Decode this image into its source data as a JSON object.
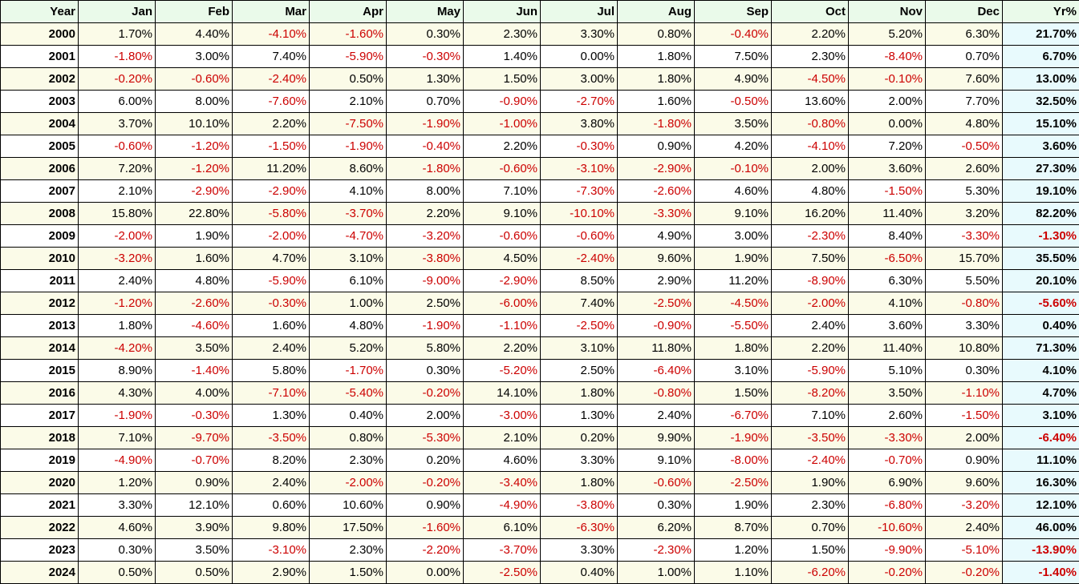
{
  "headers": [
    "Year",
    "Jan",
    "Feb",
    "Mar",
    "Apr",
    "May",
    "Jun",
    "Jul",
    "Aug",
    "Sep",
    "Oct",
    "Nov",
    "Dec",
    "Yr%"
  ],
  "rows": [
    [
      "2000",
      "1.70%",
      "4.40%",
      "-4.10%",
      "-1.60%",
      "0.30%",
      "2.30%",
      "3.30%",
      "0.80%",
      "-0.40%",
      "2.20%",
      "5.20%",
      "6.30%",
      "21.70%"
    ],
    [
      "2001",
      "-1.80%",
      "3.00%",
      "7.40%",
      "-5.90%",
      "-0.30%",
      "1.40%",
      "0.00%",
      "1.80%",
      "7.50%",
      "2.30%",
      "-8.40%",
      "0.70%",
      "6.70%"
    ],
    [
      "2002",
      "-0.20%",
      "-0.60%",
      "-2.40%",
      "0.50%",
      "1.30%",
      "1.50%",
      "3.00%",
      "1.80%",
      "4.90%",
      "-4.50%",
      "-0.10%",
      "7.60%",
      "13.00%"
    ],
    [
      "2003",
      "6.00%",
      "8.00%",
      "-7.60%",
      "2.10%",
      "0.70%",
      "-0.90%",
      "-2.70%",
      "1.60%",
      "-0.50%",
      "13.60%",
      "2.00%",
      "7.70%",
      "32.50%"
    ],
    [
      "2004",
      "3.70%",
      "10.10%",
      "2.20%",
      "-7.50%",
      "-1.90%",
      "-1.00%",
      "3.80%",
      "-1.80%",
      "3.50%",
      "-0.80%",
      "0.00%",
      "4.80%",
      "15.10%"
    ],
    [
      "2005",
      "-0.60%",
      "-1.20%",
      "-1.50%",
      "-1.90%",
      "-0.40%",
      "2.20%",
      "-0.30%",
      "0.90%",
      "4.20%",
      "-4.10%",
      "7.20%",
      "-0.50%",
      "3.60%"
    ],
    [
      "2006",
      "7.20%",
      "-1.20%",
      "11.20%",
      "8.60%",
      "-1.80%",
      "-0.60%",
      "-3.10%",
      "-2.90%",
      "-0.10%",
      "2.00%",
      "3.60%",
      "2.60%",
      "27.30%"
    ],
    [
      "2007",
      "2.10%",
      "-2.90%",
      "-2.90%",
      "4.10%",
      "8.00%",
      "7.10%",
      "-7.30%",
      "-2.60%",
      "4.60%",
      "4.80%",
      "-1.50%",
      "5.30%",
      "19.10%"
    ],
    [
      "2008",
      "15.80%",
      "22.80%",
      "-5.80%",
      "-3.70%",
      "2.20%",
      "9.10%",
      "-10.10%",
      "-3.30%",
      "9.10%",
      "16.20%",
      "11.40%",
      "3.20%",
      "82.20%"
    ],
    [
      "2009",
      "-2.00%",
      "1.90%",
      "-2.00%",
      "-4.70%",
      "-3.20%",
      "-0.60%",
      "-0.60%",
      "4.90%",
      "3.00%",
      "-2.30%",
      "8.40%",
      "-3.30%",
      "-1.30%"
    ],
    [
      "2010",
      "-3.20%",
      "1.60%",
      "4.70%",
      "3.10%",
      "-3.80%",
      "4.50%",
      "-2.40%",
      "9.60%",
      "1.90%",
      "7.50%",
      "-6.50%",
      "15.70%",
      "35.50%"
    ],
    [
      "2011",
      "2.40%",
      "4.80%",
      "-5.90%",
      "6.10%",
      "-9.00%",
      "-2.90%",
      "8.50%",
      "2.90%",
      "11.20%",
      "-8.90%",
      "6.30%",
      "5.50%",
      "20.10%"
    ],
    [
      "2012",
      "-1.20%",
      "-2.60%",
      "-0.30%",
      "1.00%",
      "2.50%",
      "-6.00%",
      "7.40%",
      "-2.50%",
      "-4.50%",
      "-2.00%",
      "4.10%",
      "-0.80%",
      "-5.60%"
    ],
    [
      "2013",
      "1.80%",
      "-4.60%",
      "1.60%",
      "4.80%",
      "-1.90%",
      "-1.10%",
      "-2.50%",
      "-0.90%",
      "-5.50%",
      "2.40%",
      "3.60%",
      "3.30%",
      "0.40%"
    ],
    [
      "2014",
      "-4.20%",
      "3.50%",
      "2.40%",
      "5.20%",
      "5.80%",
      "2.20%",
      "3.10%",
      "11.80%",
      "1.80%",
      "2.20%",
      "11.40%",
      "10.80%",
      "71.30%"
    ],
    [
      "2015",
      "8.90%",
      "-1.40%",
      "5.80%",
      "-1.70%",
      "0.30%",
      "-5.20%",
      "2.50%",
      "-6.40%",
      "3.10%",
      "-5.90%",
      "5.10%",
      "0.30%",
      "4.10%"
    ],
    [
      "2016",
      "4.30%",
      "4.00%",
      "-7.10%",
      "-5.40%",
      "-0.20%",
      "14.10%",
      "1.80%",
      "-0.80%",
      "1.50%",
      "-8.20%",
      "3.50%",
      "-1.10%",
      "4.70%"
    ],
    [
      "2017",
      "-1.90%",
      "-0.30%",
      "1.30%",
      "0.40%",
      "2.00%",
      "-3.00%",
      "1.30%",
      "2.40%",
      "-6.70%",
      "7.10%",
      "2.60%",
      "-1.50%",
      "3.10%"
    ],
    [
      "2018",
      "7.10%",
      "-9.70%",
      "-3.50%",
      "0.80%",
      "-5.30%",
      "2.10%",
      "0.20%",
      "9.90%",
      "-1.90%",
      "-3.50%",
      "-3.30%",
      "2.00%",
      "-6.40%"
    ],
    [
      "2019",
      "-4.90%",
      "-0.70%",
      "8.20%",
      "2.30%",
      "0.20%",
      "4.60%",
      "3.30%",
      "9.10%",
      "-8.00%",
      "-2.40%",
      "-0.70%",
      "0.90%",
      "11.10%"
    ],
    [
      "2020",
      "1.20%",
      "0.90%",
      "2.40%",
      "-2.00%",
      "-0.20%",
      "-3.40%",
      "1.80%",
      "-0.60%",
      "-2.50%",
      "1.90%",
      "6.90%",
      "9.60%",
      "16.30%"
    ],
    [
      "2021",
      "3.30%",
      "12.10%",
      "0.60%",
      "10.60%",
      "0.90%",
      "-4.90%",
      "-3.80%",
      "0.30%",
      "1.90%",
      "2.30%",
      "-6.80%",
      "-3.20%",
      "12.10%"
    ],
    [
      "2022",
      "4.60%",
      "3.90%",
      "9.80%",
      "17.50%",
      "-1.60%",
      "6.10%",
      "-6.30%",
      "6.20%",
      "8.70%",
      "0.70%",
      "-10.60%",
      "2.40%",
      "46.00%"
    ],
    [
      "2023",
      "0.30%",
      "3.50%",
      "-3.10%",
      "2.30%",
      "-2.20%",
      "-3.70%",
      "3.30%",
      "-2.30%",
      "1.20%",
      "1.50%",
      "-9.90%",
      "-5.10%",
      "-13.90%"
    ],
    [
      "2024",
      "0.50%",
      "0.50%",
      "2.90%",
      "1.50%",
      "0.00%",
      "-2.50%",
      "0.40%",
      "1.00%",
      "1.10%",
      "-6.20%",
      "-0.20%",
      "-0.20%",
      "-1.40%"
    ]
  ],
  "colors": {
    "negative": "#cc0000",
    "positive": "#000000",
    "header_bg": "#eafaea",
    "total_bg": "#e8fafd",
    "row_shade": "#fbfbe8"
  }
}
